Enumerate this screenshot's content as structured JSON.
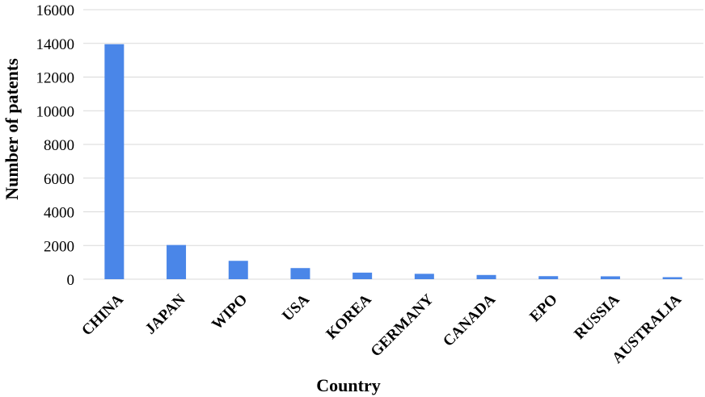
{
  "chart_data": {
    "type": "bar",
    "title": "",
    "xlabel": "Country",
    "ylabel": "Number of patents",
    "categories": [
      "CHINA",
      "JAPAN",
      "WIPO",
      "USA",
      "KOREA",
      "GERMANY",
      "CANADA",
      "EPO",
      "RUSSIA",
      "AUSTRALIA"
    ],
    "series": [
      {
        "values": [
          13950,
          2030,
          1090,
          660,
          390,
          320,
          250,
          180,
          170,
          120
        ]
      }
    ],
    "ylim": [
      0,
      16000
    ],
    "yticks": [
      "0",
      "2000",
      "4000",
      "6000",
      "8000",
      "10000",
      "12000",
      "14000",
      "16000"
    ],
    "grid": true,
    "legend": "none",
    "bar_color": "#4a86e8"
  }
}
